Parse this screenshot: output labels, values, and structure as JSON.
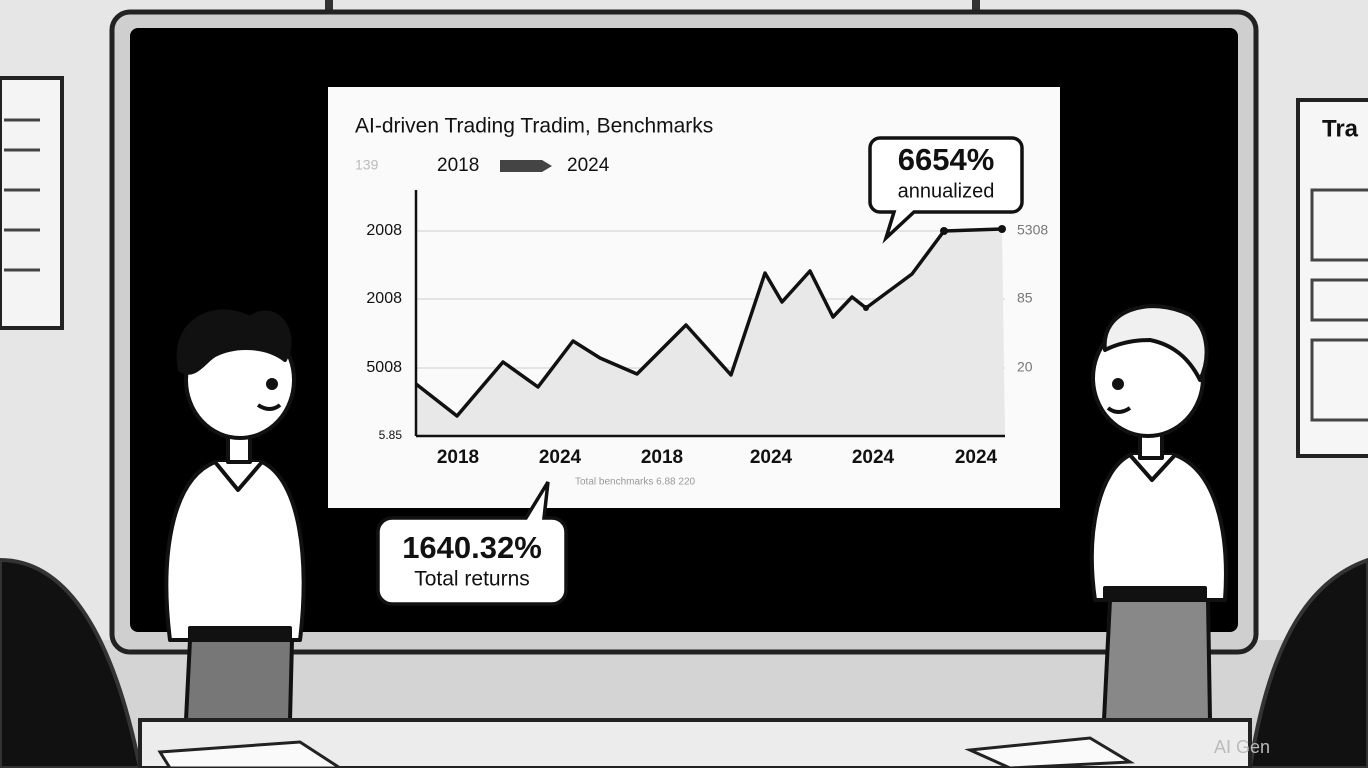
{
  "screen": {
    "title": "AI-driven Trading Tradim, Benchmarks",
    "legend": {
      "faint": "139",
      "from": "2018",
      "to": "2024"
    },
    "left_labels": [
      "2008",
      "2008",
      "5008",
      "5.85"
    ],
    "right_labels": [
      "5308",
      "85",
      "20"
    ],
    "x_labels": [
      "2018",
      "2024",
      "2018",
      "2024",
      "2024",
      "2024"
    ],
    "footer": "Total benchmarks 6.88 220",
    "callouts": [
      {
        "value": "6654%",
        "caption": "annualized"
      },
      {
        "value": "1640.32%",
        "caption": "Total returns"
      }
    ]
  },
  "watermark": "AI Gen"
}
